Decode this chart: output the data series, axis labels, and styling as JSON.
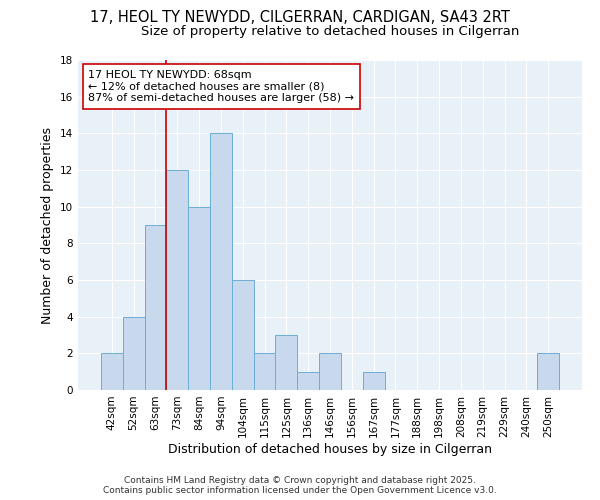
{
  "title": "17, HEOL TY NEWYDD, CILGERRAN, CARDIGAN, SA43 2RT",
  "subtitle": "Size of property relative to detached houses in Cilgerran",
  "xlabel": "Distribution of detached houses by size in Cilgerran",
  "ylabel": "Number of detached properties",
  "bins": [
    "42sqm",
    "52sqm",
    "63sqm",
    "73sqm",
    "84sqm",
    "94sqm",
    "104sqm",
    "115sqm",
    "125sqm",
    "136sqm",
    "146sqm",
    "156sqm",
    "167sqm",
    "177sqm",
    "188sqm",
    "198sqm",
    "208sqm",
    "219sqm",
    "229sqm",
    "240sqm",
    "250sqm"
  ],
  "values": [
    2,
    4,
    9,
    12,
    10,
    14,
    6,
    2,
    3,
    1,
    2,
    0,
    1,
    0,
    0,
    0,
    0,
    0,
    0,
    0,
    2
  ],
  "bar_color": "#c8d8ed",
  "bar_edge_color": "#6baed6",
  "bar_width": 1.0,
  "ylim": [
    0,
    18
  ],
  "yticks": [
    0,
    2,
    4,
    6,
    8,
    10,
    12,
    14,
    16,
    18
  ],
  "vline_color": "#cc0000",
  "vline_bin_index": 3,
  "annotation_text": "17 HEOL TY NEWYDD: 68sqm\n← 12% of detached houses are smaller (8)\n87% of semi-detached houses are larger (58) →",
  "annotation_box_facecolor": "#ffffff",
  "annotation_box_edgecolor": "#cc0000",
  "title_fontsize": 10.5,
  "subtitle_fontsize": 9.5,
  "annotation_fontsize": 8,
  "tick_fontsize": 7.5,
  "label_fontsize": 9,
  "footer": "Contains HM Land Registry data © Crown copyright and database right 2025.\nContains public sector information licensed under the Open Government Licence v3.0.",
  "footer_fontsize": 6.5,
  "bg_color": "#ffffff",
  "plot_bg_color": "#e8f0f8",
  "grid_color": "#ffffff"
}
